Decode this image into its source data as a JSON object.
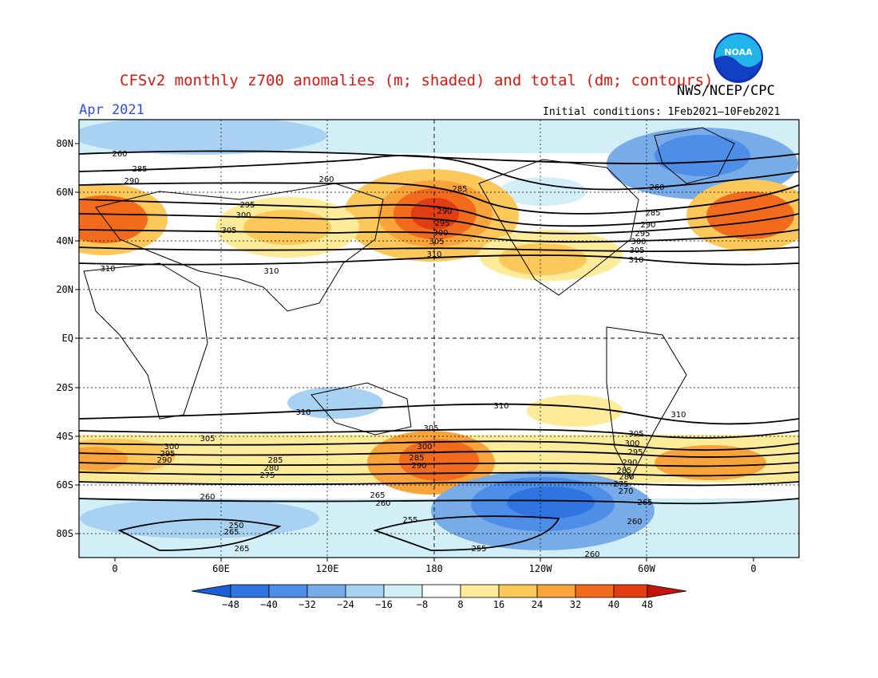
{
  "header": {
    "title": "CFSv2 monthly z700 anomalies (m; shaded) and total (dm; contours)",
    "agency": "NWS/NCEP/CPC",
    "period": "Apr 2021",
    "initial_conditions": "Initial conditions: 1Feb2021–10Feb2021",
    "logo_text": "NOAA"
  },
  "colors": {
    "neg48": "#1a5fd8",
    "neg40": "#2f74e0",
    "neg32": "#4d8ee8",
    "neg24": "#78ace9",
    "neg16": "#a9d2f2",
    "neg8": "#d2eff7",
    "neutral": "#ffffff",
    "pos8": "#fcec9a",
    "pos16": "#fcc85a",
    "pos24": "#f9a43a",
    "pos32": "#f26a1c",
    "pos40": "#e23c12",
    "pos48": "#c4150c"
  },
  "map": {
    "lat_labels": [
      "80N",
      "60N",
      "40N",
      "20N",
      "EQ",
      "20S",
      "40S",
      "60S",
      "80S"
    ],
    "lon_labels": [
      "0",
      "60E",
      "120E",
      "180",
      "120W",
      "60W",
      "0"
    ]
  },
  "colorbar": {
    "labels": [
      "−48",
      "−40",
      "−32",
      "−24",
      "−16",
      "−8",
      "8",
      "16",
      "24",
      "32",
      "40",
      "48"
    ]
  },
  "contour_labels": [
    "260",
    "285",
    "290",
    "295",
    "300",
    "305",
    "310",
    "280",
    "275",
    "270",
    "265",
    "255",
    "250"
  ]
}
